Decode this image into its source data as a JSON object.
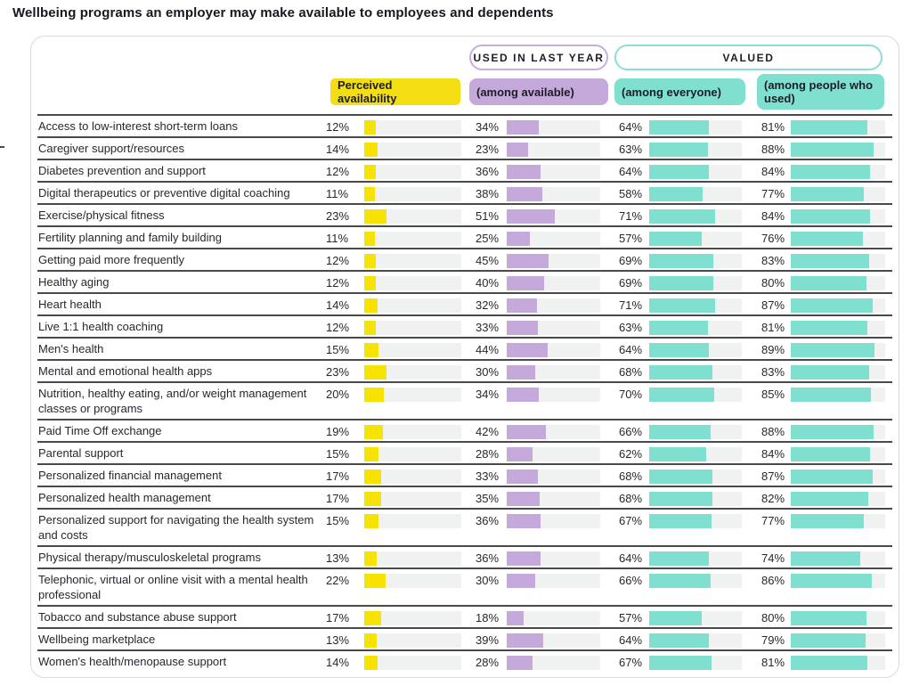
{
  "title": "Wellbeing programs an employer may make available to employees and dependents",
  "header": {
    "used_group_label": "USED IN LAST YEAR",
    "valued_group_label": "VALUED",
    "col_availability": "Perceived availability",
    "col_used_among_available": "(among available)",
    "col_valued_among_everyone": "(among everyone)",
    "col_valued_among_used": "(among people who used)"
  },
  "colors": {
    "availability_fill": "#F6E303",
    "availability_header": "#F2DE12",
    "used_fill": "#C5A9DB",
    "used_header": "#C5A9DB",
    "valued_fill": "#7FE0D0",
    "valued_header": "#7FE0D0",
    "bar_track": "#F0F1F1",
    "row_separator": "#4A4A4A"
  },
  "chart_data": {
    "type": "bar",
    "orientation": "horizontal",
    "value_unit": "%",
    "value_range": [
      0,
      100
    ],
    "columns": [
      "Perceived availability",
      "Used in last year (among available)",
      "Valued (among everyone)",
      "Valued (among people who used)"
    ],
    "rows": [
      {
        "label": "Access to low-interest short-term loans",
        "values": [
          12,
          34,
          64,
          81
        ]
      },
      {
        "label": "Caregiver support/resources",
        "values": [
          14,
          23,
          63,
          88
        ]
      },
      {
        "label": "Diabetes prevention and support",
        "values": [
          12,
          36,
          64,
          84
        ]
      },
      {
        "label": "Digital therapeutics or preventive digital coaching",
        "values": [
          11,
          38,
          58,
          77
        ]
      },
      {
        "label": "Exercise/physical fitness",
        "values": [
          23,
          51,
          71,
          84
        ]
      },
      {
        "label": "Fertility planning and family building",
        "values": [
          11,
          25,
          57,
          76
        ]
      },
      {
        "label": "Getting paid more frequently",
        "values": [
          12,
          45,
          69,
          83
        ]
      },
      {
        "label": "Healthy aging",
        "values": [
          12,
          40,
          69,
          80
        ]
      },
      {
        "label": "Heart health",
        "values": [
          14,
          32,
          71,
          87
        ]
      },
      {
        "label": "Live 1:1 health coaching",
        "values": [
          12,
          33,
          63,
          81
        ]
      },
      {
        "label": "Men's health",
        "values": [
          15,
          44,
          64,
          89
        ]
      },
      {
        "label": "Mental and emotional health apps",
        "values": [
          23,
          30,
          68,
          83
        ]
      },
      {
        "label": "Nutrition, healthy eating, and/or weight management classes or programs",
        "values": [
          20,
          34,
          70,
          85
        ]
      },
      {
        "label": "Paid Time Off exchange",
        "values": [
          19,
          42,
          66,
          88
        ]
      },
      {
        "label": "Parental support",
        "values": [
          15,
          28,
          62,
          84
        ]
      },
      {
        "label": "Personalized financial management",
        "values": [
          17,
          33,
          68,
          87
        ]
      },
      {
        "label": "Personalized health management",
        "values": [
          17,
          35,
          68,
          82
        ]
      },
      {
        "label": "Personalized support for navigating the health system and costs",
        "values": [
          15,
          36,
          67,
          77
        ]
      },
      {
        "label": "Physical therapy/musculoskeletal programs",
        "values": [
          13,
          36,
          64,
          74
        ]
      },
      {
        "label": "Telephonic, virtual or online visit with a mental health professional",
        "values": [
          22,
          30,
          66,
          86
        ]
      },
      {
        "label": "Tobacco and substance abuse support",
        "values": [
          17,
          18,
          57,
          80
        ]
      },
      {
        "label": "Wellbeing marketplace",
        "values": [
          13,
          39,
          64,
          79
        ]
      },
      {
        "label": "Women's health/menopause support",
        "values": [
          14,
          28,
          67,
          81
        ]
      }
    ]
  }
}
